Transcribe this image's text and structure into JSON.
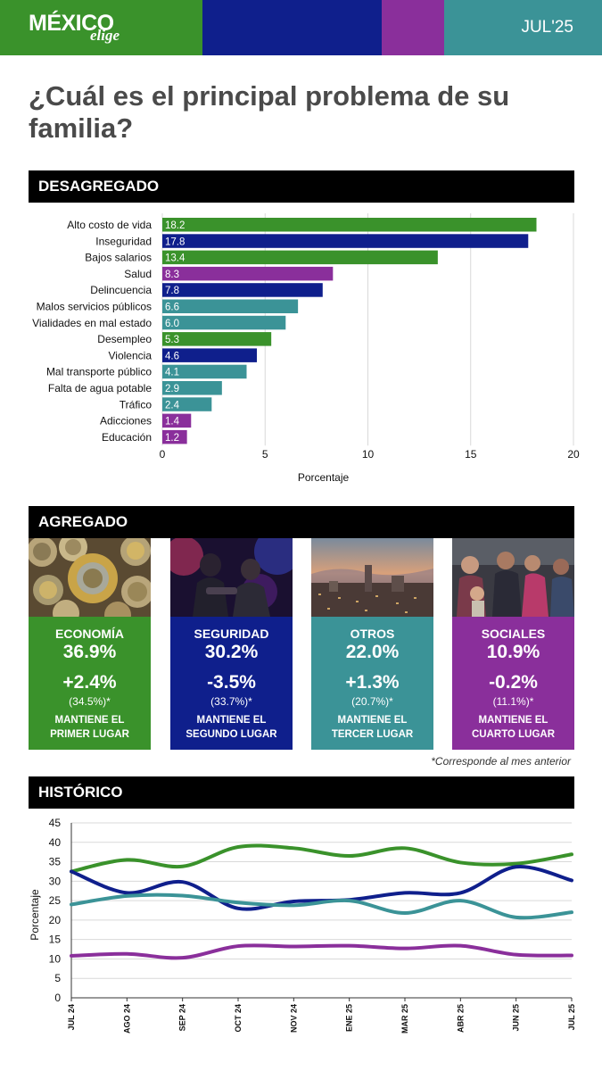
{
  "header": {
    "logo_main": "MÉXICO",
    "logo_sub": "elige",
    "date": "JUL'25",
    "colors": [
      "#3a922b",
      "#0f1f8c",
      "#8a2f9b",
      "#3b9397"
    ]
  },
  "question": "¿Cuál es el principal problema de su familia?",
  "sections": {
    "desagregado": "DESAGREGADO",
    "agregado": "AGREGADO",
    "historico": "HISTÓRICO"
  },
  "chart_data": [
    {
      "type": "bar",
      "orientation": "horizontal",
      "categories": [
        "Alto costo de vida",
        "Inseguridad",
        "Bajos salarios",
        "Salud",
        "Delincuencia",
        "Malos servicios públicos",
        "Vialidades en mal estado",
        "Desempleo",
        "Violencia",
        "Mal transporte público",
        "Falta de agua potable",
        "Tráfico",
        "Adicciones",
        "Educación"
      ],
      "values": [
        18.2,
        17.8,
        13.4,
        8.3,
        7.8,
        6.6,
        6.0,
        5.3,
        4.6,
        4.1,
        2.9,
        2.4,
        1.4,
        1.2
      ],
      "value_labels": [
        "18.2",
        "17.8",
        "13.4",
        "8.3",
        "7.8",
        "6.6",
        "6.0",
        "5.3",
        "4.6",
        "4.1",
        "2.9",
        "2.4",
        "1.4",
        "1.2"
      ],
      "bar_colors": [
        "#3a922b",
        "#0f1f8c",
        "#3a922b",
        "#8a2f9b",
        "#0f1f8c",
        "#3b9397",
        "#3b9397",
        "#3a922b",
        "#0f1f8c",
        "#3b9397",
        "#3b9397",
        "#3b9397",
        "#8a2f9b",
        "#8a2f9b"
      ],
      "xlabel": "Porcentaje",
      "xlim": [
        0,
        20
      ],
      "xticks": [
        "0",
        "5",
        "10",
        "15",
        "20"
      ],
      "grid": true
    },
    {
      "type": "line",
      "x": [
        "JUL 24",
        "AGO 24",
        "SEP 24",
        "OCT 24",
        "NOV 24",
        "ENE 25",
        "MAR 25",
        "ABR 25",
        "JUN 25",
        "JUL 25"
      ],
      "series": [
        {
          "color": "#3a922b",
          "values": [
            32.5,
            35.5,
            33.8,
            38.8,
            38.5,
            36.5,
            38.5,
            34.8,
            34.5,
            36.9
          ]
        },
        {
          "color": "#0f1f8c",
          "values": [
            32.5,
            27.0,
            29.8,
            23.0,
            24.8,
            25.2,
            27.0,
            27.0,
            33.7,
            30.2
          ]
        },
        {
          "color": "#3b9397",
          "values": [
            24.0,
            26.2,
            26.3,
            24.5,
            23.8,
            25.0,
            21.8,
            25.0,
            20.7,
            22.0
          ]
        },
        {
          "color": "#8a2f9b",
          "values": [
            10.8,
            11.3,
            10.3,
            13.3,
            13.2,
            13.4,
            12.7,
            13.4,
            11.1,
            10.9
          ]
        }
      ],
      "ylabel": "Porcentaje",
      "ylim": [
        0,
        45
      ],
      "yticks": [
        "0",
        "5",
        "10",
        "15",
        "20",
        "25",
        "30",
        "35",
        "40",
        "45"
      ],
      "grid": true
    }
  ],
  "cards": [
    {
      "name": "ECONOMÍA",
      "value": "36.9%",
      "change": "+2.4%",
      "previous": "(34.5%)*",
      "status": "MANTIENE EL PRIMER LUGAR",
      "color": "#3a922b",
      "photo": "coins"
    },
    {
      "name": "SEGURIDAD",
      "value": "30.2%",
      "change": "-3.5%",
      "previous": "(33.7%)*",
      "status": "MANTIENE EL SEGUNDO LUGAR",
      "color": "#0f1f8c",
      "photo": "police"
    },
    {
      "name": "OTROS",
      "value": "22.0%",
      "change": "+1.3%",
      "previous": "(20.7%)*",
      "status": "MANTIENE EL TERCER LUGAR",
      "color": "#3b9397",
      "photo": "city"
    },
    {
      "name": "SOCIALES",
      "value": "10.9%",
      "change": "-0.2%",
      "previous": "(11.1%)*",
      "status": "MANTIENE EL CUARTO LUGAR",
      "color": "#8a2f9b",
      "photo": "people"
    }
  ],
  "footnote": "*Corresponde al mes anterior"
}
